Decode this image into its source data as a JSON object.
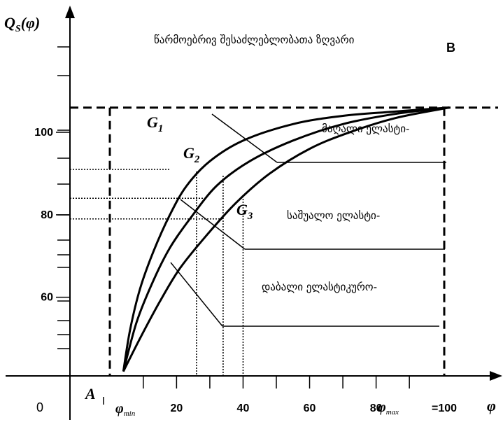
{
  "chart_data": {
    "type": "line",
    "title": "წარმოებრივ შესაძლებლობათა ზღვარი",
    "ylabel": "Q_S(φ)",
    "xlabel": "φ",
    "y_ticks": [
      {
        "value": 100,
        "label": "100"
      },
      {
        "value": 80,
        "label": "80"
      },
      {
        "value": 60,
        "label": "60"
      }
    ],
    "x_ticks": [
      {
        "value": 20,
        "label": "20"
      },
      {
        "value": 40,
        "label": "40"
      },
      {
        "value": 60,
        "label": "60"
      },
      {
        "value": 80,
        "label": "80"
      },
      {
        "value": 100,
        "label": "=100"
      }
    ],
    "origin_label": "0",
    "phi_min_label": "φ",
    "phi_min_sub": "min",
    "phi_max_label": "φ",
    "phi_max_sub": "max",
    "point_A": "A",
    "point_B": "B",
    "frontier_level": 106,
    "series": [
      {
        "name": "G",
        "subscript": "1",
        "points": [
          [
            4,
            42
          ],
          [
            6,
            52
          ],
          [
            9,
            62
          ],
          [
            13,
            71
          ],
          [
            18,
            80
          ],
          [
            23,
            87
          ],
          [
            30,
            93
          ],
          [
            40,
            98
          ],
          [
            55,
            102
          ],
          [
            70,
            104
          ],
          [
            85,
            105
          ],
          [
            102,
            106
          ]
        ]
      },
      {
        "name": "G",
        "subscript": "2",
        "points": [
          [
            4,
            42
          ],
          [
            8,
            54
          ],
          [
            13,
            64
          ],
          [
            18,
            72
          ],
          [
            24,
            79
          ],
          [
            32,
            87
          ],
          [
            42,
            93
          ],
          [
            55,
            98
          ],
          [
            70,
            102
          ],
          [
            86,
            104.5
          ],
          [
            102,
            106
          ]
        ]
      },
      {
        "name": "G",
        "subscript": "3",
        "points": [
          [
            4,
            42
          ],
          [
            9,
            50
          ],
          [
            15,
            59
          ],
          [
            21,
            67
          ],
          [
            29,
            75
          ],
          [
            38,
            83
          ],
          [
            48,
            90
          ],
          [
            60,
            96
          ],
          [
            72,
            100
          ],
          [
            86,
            103.5
          ],
          [
            102,
            106
          ]
        ]
      }
    ],
    "guides": {
      "horizontal": [
        91,
        84,
        79
      ],
      "vertical": [
        26,
        34,
        40
      ]
    },
    "annotations": [
      {
        "text": "მაღალი ელასტი-",
        "level": 85
      },
      {
        "text": "საშუალო ელასტი-",
        "level": 67
      },
      {
        "text": "დაბალი ელასტიკურო-",
        "level": 49
      }
    ]
  }
}
